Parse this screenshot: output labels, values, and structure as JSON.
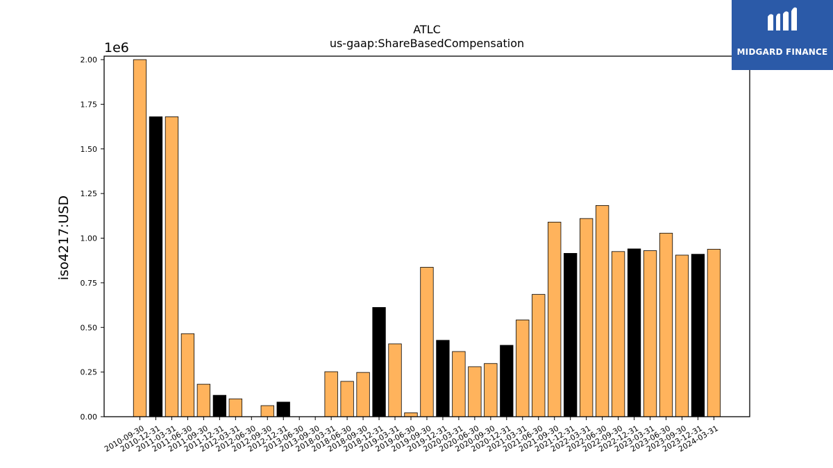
{
  "chart_data": {
    "type": "bar",
    "title": "ATLC",
    "subtitle": "us-gaap:ShareBasedCompensation",
    "xlabel": "",
    "ylabel": "iso4217:USD",
    "y_scale_label": "1e6",
    "ylim": [
      0,
      2000000
    ],
    "y_ticks": [
      0,
      250000,
      500000,
      750000,
      1000000,
      1250000,
      1500000,
      1750000,
      2000000
    ],
    "y_tick_labels": [
      "0.00",
      "0.25",
      "0.50",
      "0.75",
      "1.00",
      "1.25",
      "1.50",
      "1.75",
      "2.00"
    ],
    "colors": {
      "default": "#ffb35c",
      "highlight": "#000000",
      "edge": "#000000"
    },
    "categories": [
      "2010-09-30",
      "2010-12-31",
      "2011-03-31",
      "2011-06-30",
      "2011-09-30",
      "2011-12-31",
      "2012-03-31",
      "2012-06-30",
      "2012-09-30",
      "2012-12-31",
      "2013-06-30",
      "2013-09-30",
      "2018-03-31",
      "2018-06-30",
      "2018-09-30",
      "2018-12-31",
      "2019-03-31",
      "2019-06-30",
      "2019-09-30",
      "2019-12-31",
      "2020-03-31",
      "2020-06-30",
      "2020-09-30",
      "2020-12-31",
      "2021-03-31",
      "2021-06-30",
      "2021-09-30",
      "2021-12-31",
      "2022-03-31",
      "2022-06-30",
      "2022-09-30",
      "2022-12-31",
      "2023-03-31",
      "2023-06-30",
      "2023-09-30",
      "2023-12-31",
      "2024-03-31"
    ],
    "values": [
      2000000,
      1680000,
      1680000,
      465000,
      182000,
      120000,
      100000,
      0,
      62000,
      82000,
      0,
      0,
      252000,
      198000,
      248000,
      612000,
      408000,
      22000,
      837000,
      428000,
      365000,
      280000,
      298000,
      400000,
      542000,
      685000,
      1090000,
      915000,
      1110000,
      1183000,
      925000,
      940000,
      930000,
      1028000,
      905000,
      910000,
      938000
    ],
    "highlighted": [
      false,
      true,
      false,
      false,
      false,
      true,
      false,
      false,
      false,
      true,
      false,
      false,
      false,
      false,
      false,
      true,
      false,
      false,
      false,
      true,
      false,
      false,
      false,
      true,
      false,
      false,
      false,
      true,
      false,
      false,
      false,
      true,
      false,
      false,
      false,
      true,
      false
    ]
  },
  "logo": {
    "text": "MIDGARD FINANCE"
  }
}
